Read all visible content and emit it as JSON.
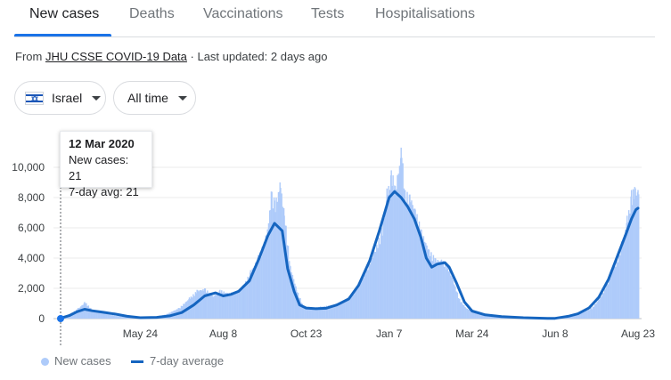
{
  "tabs": [
    {
      "label": "New cases",
      "active": true
    },
    {
      "label": "Deaths",
      "active": false
    },
    {
      "label": "Vaccinations",
      "active": false
    },
    {
      "label": "Tests",
      "active": false
    },
    {
      "label": "Hospitalisations",
      "active": false
    }
  ],
  "source": {
    "prefix": "From",
    "link_text": "JHU CSSE COVID-19 Data",
    "suffix": "· Last updated: 2 days ago"
  },
  "filters": {
    "location": "Israel",
    "location_icon": "israel-flag-icon",
    "range": "All time"
  },
  "tooltip": {
    "date": "12 Mar 2020",
    "new_cases": "New cases: 21",
    "avg": "7-day avg: 21"
  },
  "legend": {
    "new_cases": "New cases",
    "avg": "7-day average"
  },
  "colors": {
    "accent": "#1a73e8",
    "bars": "#aecbfa",
    "avg_line": "#1565c0"
  },
  "chart_data": {
    "type": "bar",
    "x_start": "2020-03-12",
    "x_end": "2021-08-23",
    "ylim": [
      0,
      11000
    ],
    "y_ticks": [
      0,
      2000,
      4000,
      6000,
      8000,
      10000
    ],
    "y_tick_labels": [
      "0",
      "2,000",
      "4,000",
      "6,000",
      "8,000",
      "10,000"
    ],
    "x_tick_labels": [
      {
        "date": "2020-05-24",
        "label": "May 24"
      },
      {
        "date": "2020-08-08",
        "label": "Aug 8"
      },
      {
        "date": "2020-10-23",
        "label": "Oct 23"
      },
      {
        "date": "2021-01-07",
        "label": "Jan 7"
      },
      {
        "date": "2021-03-24",
        "label": "Mar 24"
      },
      {
        "date": "2021-06-08",
        "label": "Jun 8"
      },
      {
        "date": "2021-08-23",
        "label": "Aug 23"
      }
    ],
    "grid": true,
    "legend": "bottom-left",
    "series": [
      {
        "name": "New cases",
        "type": "bar",
        "points": [
          [
            "2020-03-12",
            21
          ],
          [
            "2020-03-20",
            300
          ],
          [
            "2020-03-28",
            700
          ],
          [
            "2020-04-03",
            1100
          ],
          [
            "2020-04-10",
            550
          ],
          [
            "2020-04-20",
            350
          ],
          [
            "2020-04-30",
            200
          ],
          [
            "2020-05-15",
            50
          ],
          [
            "2020-06-01",
            100
          ],
          [
            "2020-06-15",
            250
          ],
          [
            "2020-06-28",
            700
          ],
          [
            "2020-07-08",
            1400
          ],
          [
            "2020-07-15",
            1900
          ],
          [
            "2020-07-22",
            2000
          ],
          [
            "2020-07-29",
            1500
          ],
          [
            "2020-08-05",
            1900
          ],
          [
            "2020-08-12",
            1700
          ],
          [
            "2020-08-19",
            1800
          ],
          [
            "2020-08-26",
            2200
          ],
          [
            "2020-09-02",
            3200
          ],
          [
            "2020-09-09",
            4200
          ],
          [
            "2020-09-16",
            5500
          ],
          [
            "2020-09-21",
            8400
          ],
          [
            "2020-09-24",
            7800
          ],
          [
            "2020-09-29",
            9000
          ],
          [
            "2020-10-03",
            6800
          ],
          [
            "2020-10-08",
            3500
          ],
          [
            "2020-10-14",
            1900
          ],
          [
            "2020-10-20",
            800
          ],
          [
            "2020-10-27",
            700
          ],
          [
            "2020-11-05",
            800
          ],
          [
            "2020-11-15",
            900
          ],
          [
            "2020-11-25",
            1100
          ],
          [
            "2020-12-03",
            1600
          ],
          [
            "2020-12-10",
            2300
          ],
          [
            "2020-12-17",
            3400
          ],
          [
            "2020-12-24",
            4500
          ],
          [
            "2020-12-31",
            6000
          ],
          [
            "2021-01-05",
            8600
          ],
          [
            "2021-01-09",
            9800
          ],
          [
            "2021-01-12",
            8800
          ],
          [
            "2021-01-18",
            11300
          ],
          [
            "2021-01-21",
            8500
          ],
          [
            "2021-01-26",
            8200
          ],
          [
            "2021-01-31",
            7200
          ],
          [
            "2021-02-05",
            5900
          ],
          [
            "2021-02-12",
            4600
          ],
          [
            "2021-02-18",
            4000
          ],
          [
            "2021-02-24",
            3900
          ],
          [
            "2021-03-01",
            3600
          ],
          [
            "2021-03-06",
            2600
          ],
          [
            "2021-03-12",
            1300
          ],
          [
            "2021-03-18",
            700
          ],
          [
            "2021-03-25",
            450
          ],
          [
            "2021-04-05",
            220
          ],
          [
            "2021-04-20",
            130
          ],
          [
            "2021-05-10",
            60
          ],
          [
            "2021-05-25",
            30
          ],
          [
            "2021-06-10",
            20
          ],
          [
            "2021-06-20",
            140
          ],
          [
            "2021-06-27",
            290
          ],
          [
            "2021-07-04",
            450
          ],
          [
            "2021-07-11",
            700
          ],
          [
            "2021-07-18",
            1300
          ],
          [
            "2021-07-25",
            2300
          ],
          [
            "2021-08-01",
            3500
          ],
          [
            "2021-08-08",
            5100
          ],
          [
            "2021-08-13",
            6800
          ],
          [
            "2021-08-17",
            8500
          ],
          [
            "2021-08-20",
            8700
          ],
          [
            "2021-08-23",
            8500
          ]
        ]
      },
      {
        "name": "7-day average",
        "type": "line",
        "points": [
          [
            "2020-03-12",
            21
          ],
          [
            "2020-03-20",
            200
          ],
          [
            "2020-03-27",
            450
          ],
          [
            "2020-04-03",
            620
          ],
          [
            "2020-04-10",
            520
          ],
          [
            "2020-04-20",
            420
          ],
          [
            "2020-05-01",
            300
          ],
          [
            "2020-05-12",
            150
          ],
          [
            "2020-05-24",
            60
          ],
          [
            "2020-06-08",
            80
          ],
          [
            "2020-06-20",
            180
          ],
          [
            "2020-07-01",
            400
          ],
          [
            "2020-07-12",
            900
          ],
          [
            "2020-07-22",
            1500
          ],
          [
            "2020-08-01",
            1700
          ],
          [
            "2020-08-08",
            1500
          ],
          [
            "2020-08-15",
            1600
          ],
          [
            "2020-08-22",
            1800
          ],
          [
            "2020-09-01",
            2500
          ],
          [
            "2020-09-10",
            4000
          ],
          [
            "2020-09-18",
            5500
          ],
          [
            "2020-09-24",
            6300
          ],
          [
            "2020-10-01",
            5800
          ],
          [
            "2020-10-06",
            3300
          ],
          [
            "2020-10-12",
            1800
          ],
          [
            "2020-10-17",
            900
          ],
          [
            "2020-10-23",
            700
          ],
          [
            "2020-11-01",
            650
          ],
          [
            "2020-11-10",
            680
          ],
          [
            "2020-11-20",
            900
          ],
          [
            "2020-12-01",
            1300
          ],
          [
            "2020-12-10",
            2200
          ],
          [
            "2020-12-20",
            3800
          ],
          [
            "2020-12-29",
            5800
          ],
          [
            "2021-01-07",
            8000
          ],
          [
            "2021-01-12",
            8400
          ],
          [
            "2021-01-18",
            8000
          ],
          [
            "2021-01-24",
            7400
          ],
          [
            "2021-01-30",
            6600
          ],
          [
            "2021-02-05",
            5400
          ],
          [
            "2021-02-10",
            4000
          ],
          [
            "2021-02-15",
            3400
          ],
          [
            "2021-02-20",
            3600
          ],
          [
            "2021-02-27",
            3700
          ],
          [
            "2021-03-03",
            3400
          ],
          [
            "2021-03-10",
            2300
          ],
          [
            "2021-03-17",
            1100
          ],
          [
            "2021-03-24",
            500
          ],
          [
            "2021-04-05",
            250
          ],
          [
            "2021-04-20",
            130
          ],
          [
            "2021-05-10",
            60
          ],
          [
            "2021-06-01",
            20
          ],
          [
            "2021-06-08",
            15
          ],
          [
            "2021-06-20",
            150
          ],
          [
            "2021-06-29",
            320
          ],
          [
            "2021-07-09",
            700
          ],
          [
            "2021-07-18",
            1400
          ],
          [
            "2021-07-27",
            2600
          ],
          [
            "2021-08-05",
            4300
          ],
          [
            "2021-08-12",
            5600
          ],
          [
            "2021-08-17",
            6600
          ],
          [
            "2021-08-21",
            7200
          ],
          [
            "2021-08-23",
            7300
          ]
        ]
      }
    ]
  }
}
